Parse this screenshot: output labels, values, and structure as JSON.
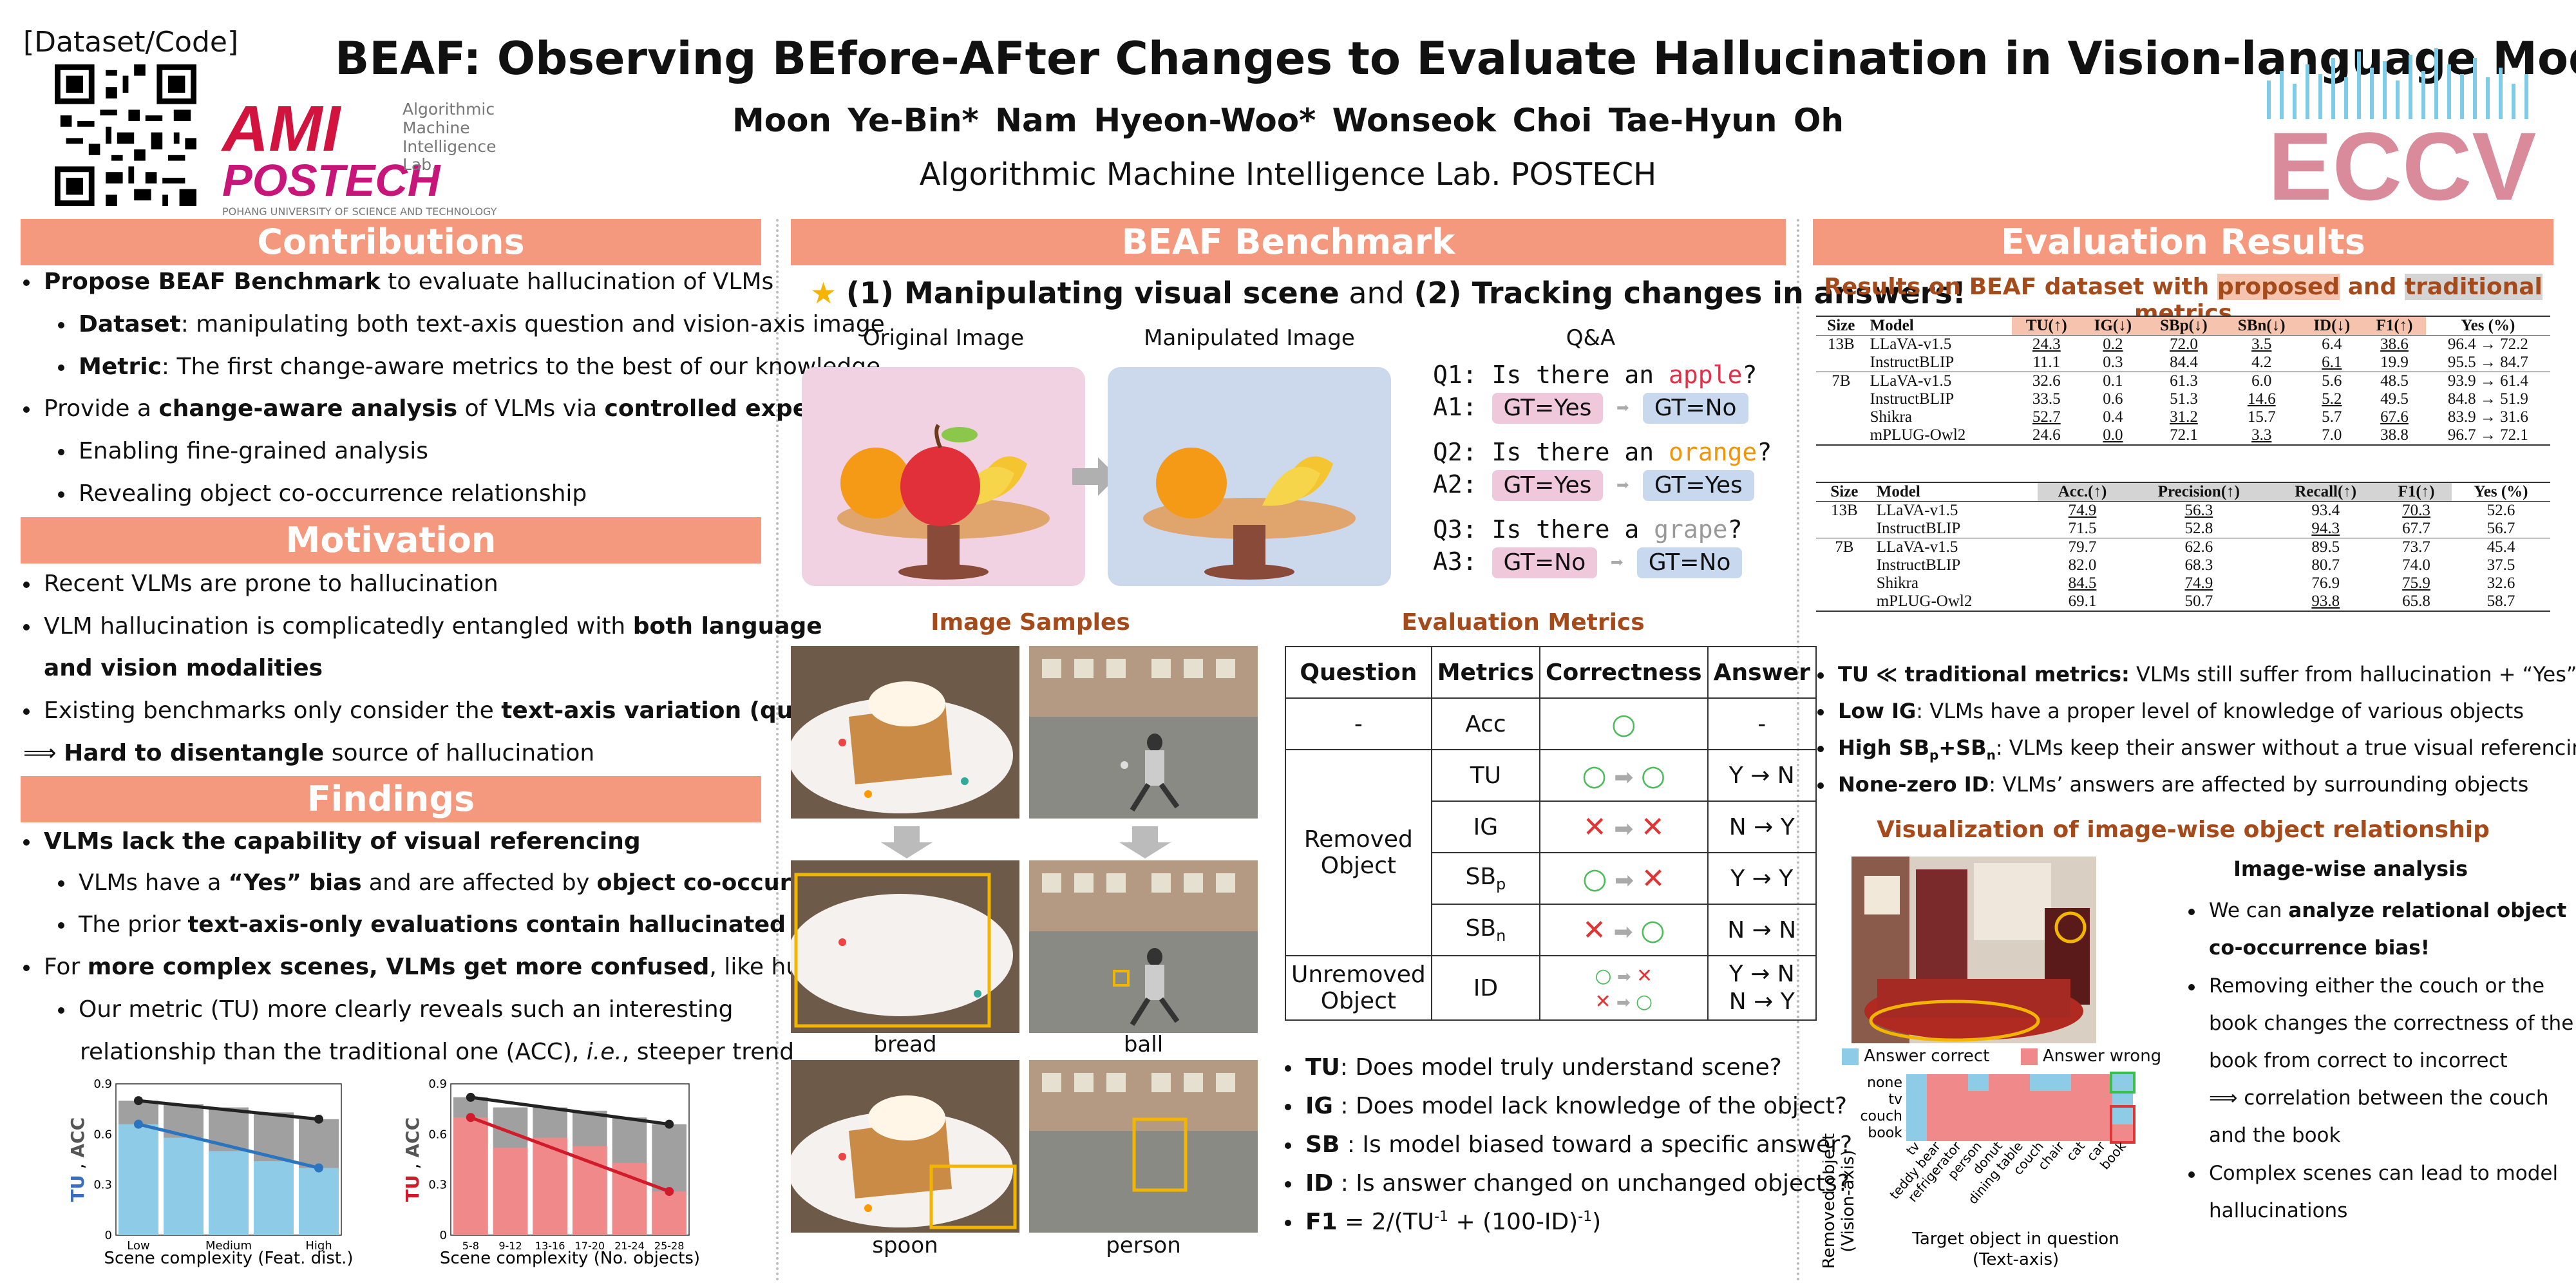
{
  "header": {
    "title": "BEAF: Observing BEfore-AFter Changes to Evaluate Hallucination in Vision-language Models",
    "authors": "Moon Ye-Bin*   Nam Hyeon-Woo*   Wonseok Choi   Tae-Hyun Oh",
    "affiliation": "Algorithmic Machine Intelligence Lab.   POSTECH",
    "dataset_label": "[Dataset/Code]",
    "lab_logo": {
      "brand": "AMI",
      "lines": [
        "Algorithmic",
        "Machine",
        "Intelligence Lab."
      ],
      "school": "POSTECH",
      "school_full": "POHANG UNIVERSITY OF SCIENCE AND TECHNOLOGY"
    },
    "conf_logo": "ECCV",
    "colors": {
      "banner": "#f4997d",
      "accent_red": "#d1133e",
      "brown": "#a54a1a",
      "blue": "#8ecbe6",
      "red": "#f08a8a"
    }
  },
  "left": {
    "contributions_title": "Contributions",
    "motivation_title": "Motivation",
    "findings_title": "Findings",
    "c1b": "Propose BEAF Benchmark",
    "c1": " to evaluate hallucination of VLMs",
    "c2b": "Dataset",
    "c2": ": manipulating both text-axis question and vision-axis image",
    "c3b": "Metric",
    "c3": ": The first change-aware metrics to the best of our knowledge",
    "c4a": "Provide a ",
    "c4b": "change-aware analysis",
    "c4c": " of VLMs via ",
    "c4d": "controlled experiments",
    "c5": "Enabling fine-grained analysis",
    "c6": "Revealing object co-occurrence relationship",
    "m1": "Recent VLMs are prone to hallucination",
    "m2a": "VLM hallucination is complicatedly entangled with ",
    "m2b": "both language",
    "m2c": "and vision modalities",
    "m3a": "Existing benchmarks only consider the ",
    "m3b": "text-axis variation (question)",
    "m4a": "⟹ ",
    "m4b": "Hard to disentangle",
    "m4c": " source of hallucination",
    "f1": "VLMs lack the capability of visual referencing",
    "f2a": "VLMs have a ",
    "f2b": "“Yes” bias",
    "f2c": " and are affected by ",
    "f2d": "object co-occurrences",
    "f3a": "The prior ",
    "f3b": "text-axis-only evaluations contain hallucinated answers",
    "f4a": "For ",
    "f4b": "more complex scenes, VLMs get more confused",
    ", ": "",
    "f4c": ", like humans",
    "f5": "Our metric (TU) more clearly reveals such an interesting",
    "f6a": "relationship than the traditional one (ACC), ",
    "f6b": "i.e.",
    "f6c": ", steeper trend",
    "chart1": {
      "ylabel_a": "TU",
      "ylabel_sep": " , ",
      "ylabel_b": "ACC",
      "xlabel": "Scene complexity (Feat. dist.)",
      "ticks_y": [
        "0",
        "0.3",
        "0.6",
        "0.9"
      ],
      "ticks_x": [
        "Low",
        "Medium",
        "High"
      ]
    },
    "chart2": {
      "ylabel_a": "TU",
      "ylabel_sep": " , ",
      "ylabel_b": "ACC",
      "xlabel": "Scene complexity (No. objects)",
      "ticks_y": [
        "0",
        "0.3",
        "0.6",
        "0.9"
      ],
      "ticks_x": [
        "5-8",
        "9-12",
        "13-16",
        "17-20",
        "21-24",
        "25-28"
      ]
    }
  },
  "chart_data": [
    {
      "type": "bar",
      "categories": [
        "Low",
        "",
        "Medium",
        "",
        "High"
      ],
      "series": [
        {
          "values": [
            0.8,
            0.78,
            0.76,
            0.73,
            0.69
          ]
        },
        {
          "values": [
            0.66,
            0.58,
            0.5,
            0.44,
            0.4
          ]
        }
      ],
      "xlabel": "Scene complexity (Feat. dist.)",
      "ylabel": "TU , ACC",
      "ylim": [
        0,
        0.9
      ]
    },
    {
      "type": "bar",
      "categories": [
        "5-8",
        "9-12",
        "13-16",
        "17-20",
        "21-24",
        "25-28"
      ],
      "series": [
        {
          "values": [
            0.82,
            0.76,
            0.76,
            0.74,
            0.7,
            0.66
          ]
        },
        {
          "values": [
            0.7,
            0.52,
            0.58,
            0.53,
            0.43,
            0.26
          ]
        }
      ],
      "xlabel": "Scene complexity (No. objects)",
      "ylabel": "TU , ACC",
      "ylim": [
        0,
        0.9
      ]
    }
  ],
  "mid": {
    "banner": "BEAF Benchmark",
    "headline_a": "(1) Manipulating visual scene",
    "headline_b": " and ",
    "headline_c": "(2) Tracking changes in answers!",
    "orig": "Original Image",
    "manip": "Manipulated Image",
    "qa_title": "Q&A",
    "q1a": "Q1: Is there an ",
    "q1b": "apple",
    "q1c": "?",
    "a1": "A1:",
    "g1a": "GT=Yes",
    "g1b": "GT=No",
    "q2a": "Q2: Is there an ",
    "q2b": "orange",
    "q2c": "?",
    "a2": "A2:",
    "g2a": "GT=Yes",
    "g2b": "GT=Yes",
    "q3a": "Q3: Is there a ",
    "q3b": "grape",
    "q3c": "?",
    "a3": "A3:",
    "g3a": "GT=No",
    "g3b": "GT=No",
    "samples_title": "Image Samples",
    "metrics_title": "Evaluation Metrics",
    "s1": "bread",
    "s2": "ball",
    "s3": "spoon",
    "s4": "person",
    "th": [
      "Question",
      "Metrics",
      "Correctness",
      "Answer"
    ],
    "r0": {
      "q": "-",
      "m": "Acc",
      "a": "-"
    },
    "removed": "Removed\nObject",
    "unremoved": "Unremoved\nObject",
    "r1": {
      "m": "TU",
      "a": "Y → N"
    },
    "r2": {
      "m": "IG",
      "a": "N → Y"
    },
    "r3": {
      "m": "SB",
      "sub": "p",
      "a": "Y → Y"
    },
    "r4": {
      "m": "SB",
      "sub": "n",
      "a": "N → N"
    },
    "r5": {
      "m": "ID",
      "a1": "Y → N",
      "a2": "N → Y"
    },
    "d1b": "TU",
    "d1": ": Does model truly understand scene?",
    "d2b": "IG",
    "d2": " : Does model lack knowledge of the object?",
    "d3b": "SB",
    "d3": " : Is model biased toward a specific answer?",
    "d4b": "ID",
    "d4": " : Is answer changed on unchanged objects?",
    "d5b": "F1",
    "d5": " = 2/(TU",
    "d5s": "-1",
    "d5c": " + (100-ID)",
    "d5s2": "-1",
    "d5d": ")"
  },
  "right": {
    "banner": "Evaluation Results",
    "sub_a": "Results on BEAF dataset with ",
    "sub_b": "proposed",
    "sub_c": " and ",
    "sub_d": "traditional",
    "sub_e": " metrics",
    "t1h": [
      "Size",
      "Model",
      "TU(↑)",
      "IG(↓)",
      "SBp(↓)",
      "SBn(↓)",
      "ID(↓)",
      "F1(↑)",
      "Yes (%)"
    ],
    "t1": [
      [
        "13B",
        "LLaVA-v1.5",
        "24.3",
        "0.2",
        "72.0",
        "3.5",
        "6.4",
        "38.6",
        "96.4 → 72.2"
      ],
      [
        "",
        "InstructBLIP",
        "11.1",
        "0.3",
        "84.4",
        "4.2",
        "6.1",
        "19.9",
        "95.5 → 84.7"
      ],
      [
        "7B",
        "LLaVA-v1.5",
        "32.6",
        "0.1",
        "61.3",
        "6.0",
        "5.6",
        "48.5",
        "93.9 → 61.4"
      ],
      [
        "",
        "InstructBLIP",
        "33.5",
        "0.6",
        "51.3",
        "14.6",
        "5.2",
        "49.5",
        "84.8 → 51.9"
      ],
      [
        "",
        "Shikra",
        "52.7",
        "0.4",
        "31.2",
        "15.7",
        "5.7",
        "67.6",
        "83.9 → 31.6"
      ],
      [
        "",
        "mPLUG-Owl2",
        "24.6",
        "0.0",
        "72.1",
        "3.3",
        "7.0",
        "38.8",
        "96.7 → 72.1"
      ]
    ],
    "t2h": [
      "Size",
      "Model",
      "Acc.(↑)",
      "Precision(↑)",
      "Recall(↑)",
      "F1(↑)",
      "Yes (%)"
    ],
    "t2": [
      [
        "13B",
        "LLaVA-v1.5",
        "74.9",
        "56.3",
        "93.4",
        "70.3",
        "52.6"
      ],
      [
        "",
        "InstructBLIP",
        "71.5",
        "52.8",
        "94.3",
        "67.7",
        "56.7"
      ],
      [
        "7B",
        "LLaVA-v1.5",
        "79.7",
        "62.6",
        "89.5",
        "73.7",
        "45.4"
      ],
      [
        "",
        "InstructBLIP",
        "82.0",
        "68.3",
        "80.7",
        "74.0",
        "37.5"
      ],
      [
        "",
        "Shikra",
        "84.5",
        "74.9",
        "76.9",
        "75.9",
        "32.6"
      ],
      [
        "",
        "mPLUG-Owl2",
        "69.1",
        "50.7",
        "93.8",
        "65.8",
        "58.7"
      ]
    ],
    "b1a": "TU ≪ traditional metrics:",
    "b1b": " VLMs still suffer from hallucination + “Yes” bias",
    "b2a": "Low IG",
    "b2b": ": VLMs have a proper level of knowledge of various objects",
    "b3a": "High SB",
    "b3s1": "p",
    "b3m": "+SB",
    "b3s2": "n",
    "b3b": ": VLMs keep their answer without a true visual referencing",
    "b4a": "None-zero ID",
    "b4b": ": VLMs’ answers are affected by surrounding objects",
    "vis_title": "Visualization of image-wise object relationship",
    "iw_title": "Image-wise analysis",
    "iw1a": "We can ",
    "iw1b": "analyze relational object",
    "iw1c": "co-occurrence bias!",
    "iw2": "Removing either the couch or the",
    "iw3": "book changes the correctness of the",
    "iw4": "book from correct to incorrect",
    "iw5": "⟹ correlation between the couch",
    "iw6": "and the book",
    "iw7": "Complex scenes can lead to model",
    "iw8": "hallucinations",
    "legend_correct": "Answer correct",
    "legend_wrong": "Answer wrong",
    "hm_ylabel1": "Removed object",
    "hm_ylabel2": "(Vision-axis)",
    "hm_xlabel1": "Target object in question",
    "hm_xlabel2": "(Text-axis)",
    "hm_rows": [
      "none",
      "tv",
      "couch",
      "book"
    ],
    "hm_cols": [
      "tv",
      "teddy bear",
      "refrigerator",
      "person",
      "donut",
      "dining table",
      "couch",
      "chair",
      "cat",
      "car",
      "book"
    ]
  }
}
